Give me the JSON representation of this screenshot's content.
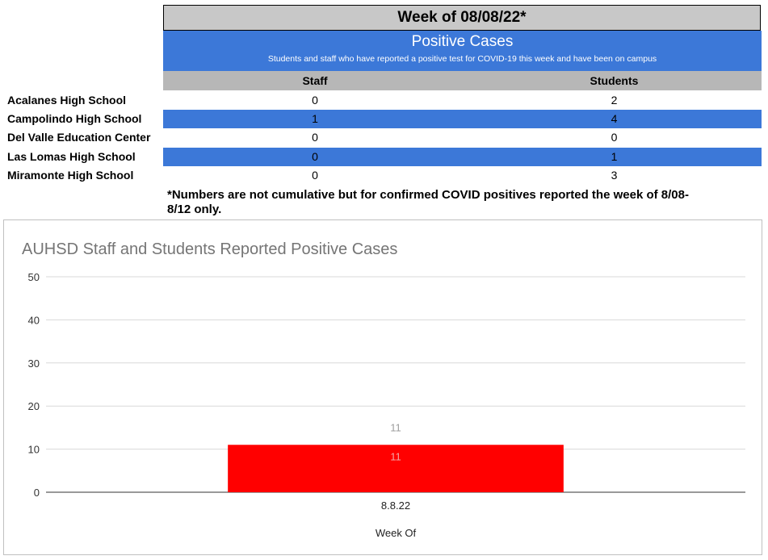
{
  "table": {
    "week_header": "Week of 08/08/22*",
    "title": "Positive Cases",
    "subtitle": "Students and staff who have reported a positive test for COVID-19 this week and have been on campus",
    "columns": [
      "Staff",
      "Students"
    ],
    "rows": [
      {
        "school": "Acalanes High School",
        "staff": "0",
        "students": "2"
      },
      {
        "school": "Campolindo High School",
        "staff": "1",
        "students": "4"
      },
      {
        "school": "Del Valle Education Center",
        "staff": "0",
        "students": "0"
      },
      {
        "school": "Las Lomas High School",
        "staff": "0",
        "students": "1"
      },
      {
        "school": "Miramonte High School",
        "staff": "0",
        "students": "3"
      }
    ],
    "footnote": "*Numbers are not cumulative but for confirmed COVID positives reported the week of 8/08-8/12 only.",
    "colors": {
      "blue": "#3c78d8",
      "header_gray": "#c8c8c8",
      "column_gray": "#b7b7b7"
    }
  },
  "chart_data": {
    "type": "bar",
    "title": "AUHSD Staff and Students Reported Positive Cases",
    "xlabel": "Week Of",
    "ylabel": "",
    "categories": [
      "8.8.22"
    ],
    "values": [
      11
    ],
    "data_label": "11",
    "total_label": "11",
    "yticks": [
      0,
      10,
      20,
      30,
      40,
      50
    ],
    "ylim": [
      0,
      50
    ],
    "grid": true,
    "bar_color": "#ff0000"
  }
}
